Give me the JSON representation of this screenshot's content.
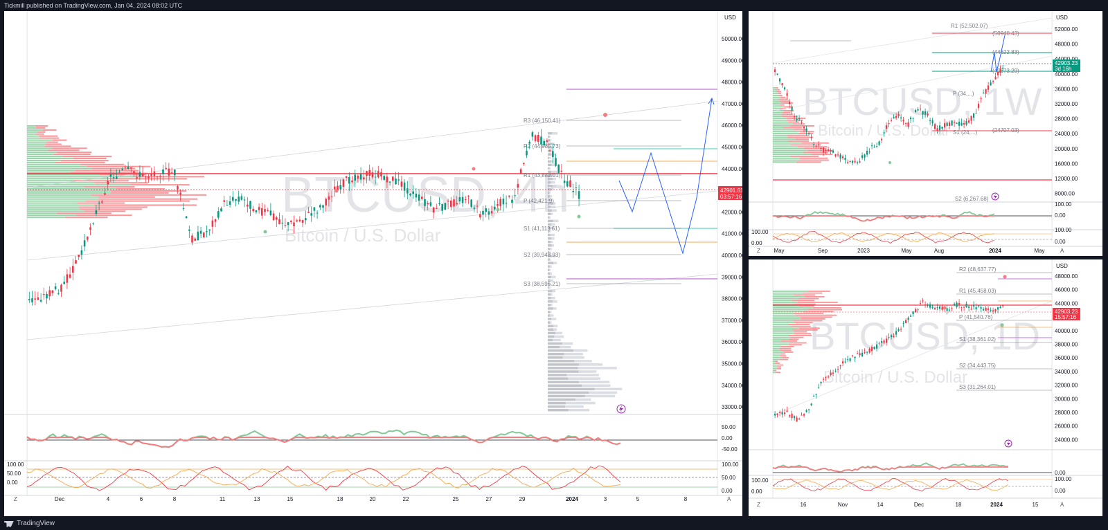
{
  "header": {
    "publisher_text": "Tickmill published on TradingView.com, Jan 04, 2024 08:02 UTC"
  },
  "footer": {
    "brand": "TradingView"
  },
  "colors": {
    "up": "#089981",
    "down": "#f23645",
    "bg": "#131722",
    "price_tag": "#f23645",
    "green_tag": "#089981"
  },
  "main_chart": {
    "currency": "USD",
    "watermark": "BTCUSD, 4h",
    "watermark_sub": "Bitcoin / U.S. Dollar",
    "price_axis": [
      "50000.00",
      "49000.00",
      "48000.00",
      "47000.00",
      "46000.00",
      "45000.00",
      "44000.00",
      "43000.00",
      "42000.00",
      "41000.00",
      "40000.00",
      "39000.00",
      "38000.00",
      "37000.00",
      "36000.00",
      "35000.00",
      "34000.00",
      "33000.00"
    ],
    "price_tag": "42901.61",
    "price_tag_time": "03:57:16",
    "pivots": [
      "R3 (46,150.41)",
      "R2 (44,985.73)",
      "R1 (43,882.01)",
      "P (42,421.9)",
      "S1 (41,113.61)",
      "S2 (39,948.93)",
      "S3 (38,595.21)"
    ],
    "osc1_axis": [
      "50.00",
      "0.00",
      "-50.00"
    ],
    "osc2_axis": [
      "100.00",
      "50.00",
      "0.00"
    ],
    "osc2_left": [
      "100.00",
      "50.00",
      "0.00"
    ],
    "time_axis": [
      "Dec",
      "4",
      "6",
      "8",
      "11",
      "13",
      "15",
      "18",
      "20",
      "22",
      "25",
      "27",
      "29",
      "2024",
      "3",
      "5",
      "8"
    ],
    "z_label": "Z",
    "a_label": "A"
  },
  "weekly_chart": {
    "currency": "USD",
    "watermark": "BTCUSD, 1W",
    "watermark_sub": "Bitcoin / U.S. Dollar",
    "price_axis": [
      "52000.00",
      "48000.00",
      "44000.00",
      "40000.00",
      "36000.00",
      "32000.00",
      "28000.00",
      "24000.00",
      "20000.00",
      "16000.00",
      "12000.00",
      "8000.00"
    ],
    "price_tag": "42903.23",
    "price_tag_time": "3d 16h",
    "levels": [
      "R1 (52,502.07)",
      "(50940.43)",
      "(44622.83)",
      "(40673.29)",
      "P (34,...)",
      "(24707.03)",
      "S1 (24,...)",
      "S2 (6,267.68)"
    ],
    "osc1_axis": [
      "100.00",
      "0.00"
    ],
    "osc2_axis": [
      "100.00",
      "0.00"
    ],
    "osc2_left": [
      "100.00",
      "0.00"
    ],
    "time_axis": [
      "May",
      "Sep",
      "2023",
      "May",
      "Aug",
      "2024",
      "May"
    ],
    "z_label": "Z",
    "a_label": "A"
  },
  "daily_chart": {
    "currency": "USD",
    "watermark": "BTCUSD, 1D",
    "watermark_sub": "Bitcoin / U.S. Dollar",
    "price_axis": [
      "48000.00",
      "46000.00",
      "44000.00",
      "42000.00",
      "40000.00",
      "38000.00",
      "36000.00",
      "34000.00",
      "32000.00",
      "30000.00",
      "28000.00",
      "26000.00",
      "24000.00"
    ],
    "price_tag": "42903.23",
    "price_tag_time": "15:57:16",
    "pivots": [
      "R2 (48,637.77)",
      "R1 (45,458.03)",
      "P (41,540.76)",
      "S1 (38,361.02)",
      "S2 (34,443.75)",
      "S3 (31,264.01)"
    ],
    "osc1_axis": [
      "0.00"
    ],
    "osc2_axis": [
      "100.00",
      "0.00"
    ],
    "osc2_left": [
      "100.00",
      "0.00"
    ],
    "time_axis": [
      "16",
      "Nov",
      "14",
      "Dec",
      "18",
      "2024",
      "15"
    ],
    "z_label": "Z",
    "a_label": "A"
  }
}
